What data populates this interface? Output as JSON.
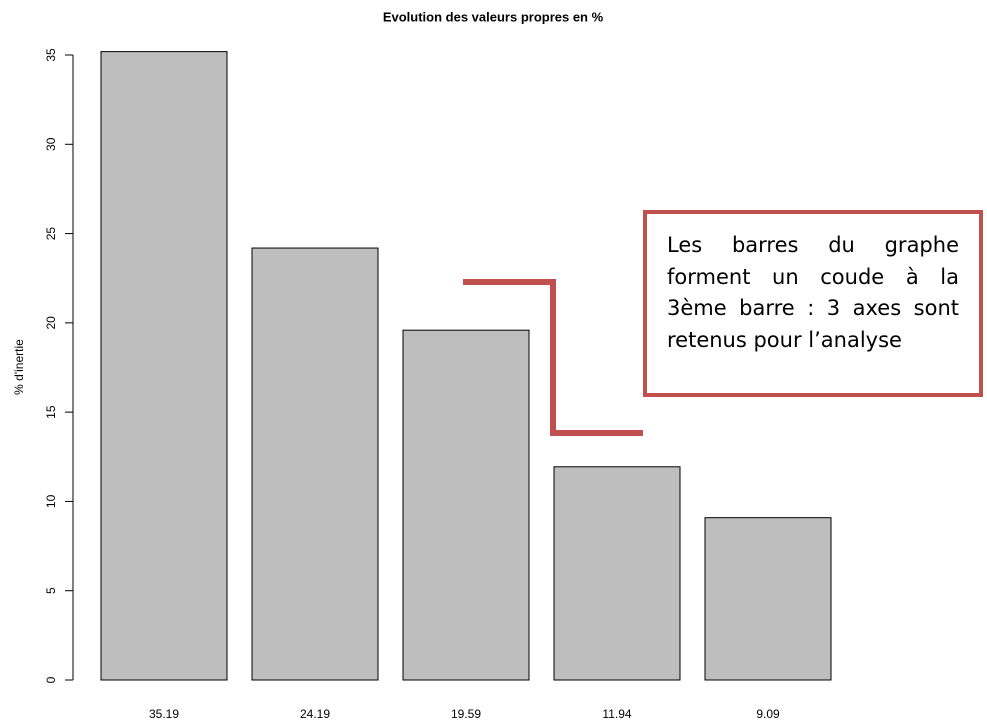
{
  "chart_data": {
    "type": "bar",
    "title": "Evolution des valeurs propres en %",
    "ylabel": "% d'inertie",
    "categories": [
      "35.19",
      "24.19",
      "19.59",
      "11.94",
      "9.09"
    ],
    "values": [
      35.19,
      24.19,
      19.59,
      11.94,
      9.09
    ],
    "color": "#bebebe",
    "ylim": [
      0,
      35
    ],
    "yticks": [
      0,
      5,
      10,
      15,
      20,
      25,
      30,
      35
    ],
    "annotation": "Les barres du graphe forment un coude à la 3ème barre : 3 axes sont retenus pour l’analyse"
  }
}
